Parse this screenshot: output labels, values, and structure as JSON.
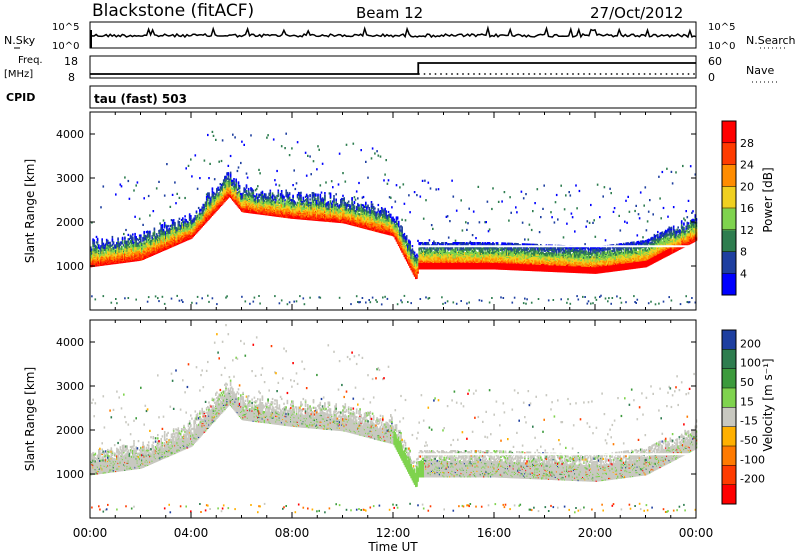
{
  "header": {
    "station": "Blackstone (fitACF)",
    "beam": "Beam 12",
    "date": "27/Oct/2012"
  },
  "top_panels": {
    "nsky_label": "N.Sky",
    "nsky_ticks": [
      "10^5",
      "10^0"
    ],
    "nsearch_label": "N.Search",
    "nsearch_ticks": [
      "10^5",
      "10^0"
    ],
    "freq_label": "Freq.",
    "freq_unit": "[MHz]",
    "freq_ticks": [
      "18",
      "8"
    ],
    "nave_label": "Nave",
    "nave_ticks": [
      "60",
      "0"
    ],
    "cpid_label": "CPID",
    "cpid_value": "tau (fast) 503"
  },
  "chart_data": [
    {
      "type": "heatmap",
      "panel": "power",
      "ylabel": "Slant Range [km]",
      "xlabel": "Time UT",
      "x_ticks": [
        "00:00",
        "04:00",
        "08:00",
        "12:00",
        "16:00",
        "20:00",
        "00:00"
      ],
      "ylim": [
        0,
        4500
      ],
      "y_ticks": [
        1000,
        2000,
        3000,
        4000
      ],
      "colorbar": {
        "label": "Power [dB]",
        "ticks": [
          "4",
          "8",
          "12",
          "16",
          "20",
          "24",
          "28"
        ],
        "colors": [
          "#0000ff",
          "#1e3fa0",
          "#2e7d4f",
          "#7fd34e",
          "#f0d020",
          "#ff8c00",
          "#ff3b00",
          "#ff0000"
        ]
      },
      "echo_band": {
        "hours": [
          0,
          2,
          4,
          5.5,
          6,
          8,
          10,
          12,
          12.9,
          13,
          16,
          20,
          22,
          24
        ],
        "range_km": [
          1100,
          1250,
          1750,
          2700,
          2350,
          2200,
          2100,
          1800,
          800,
          1050,
          1050,
          950,
          1100,
          1700
        ]
      }
    },
    {
      "type": "heatmap",
      "panel": "velocity",
      "ylabel": "Slant Range [km]",
      "xlabel": "Time UT",
      "x_ticks": [
        "00:00",
        "04:00",
        "08:00",
        "12:00",
        "16:00",
        "20:00",
        "00:00"
      ],
      "ylim": [
        0,
        4500
      ],
      "y_ticks": [
        1000,
        2000,
        3000,
        4000
      ],
      "colorbar": {
        "label": "Velocity [m s⁻¹]",
        "ticks": [
          "200",
          "100",
          "50",
          "15",
          "-15",
          "-50",
          "-100",
          "-200"
        ],
        "colors": [
          "#1e3fa0",
          "#2e7d4f",
          "#3c9a3c",
          "#7fd34e",
          "#c8c8c0",
          "#ffb000",
          "#ff7a00",
          "#ff3b00",
          "#ff0000"
        ]
      }
    }
  ],
  "colors": {
    "ground_scatter": "#c8c8c0",
    "axis": "#000000"
  }
}
